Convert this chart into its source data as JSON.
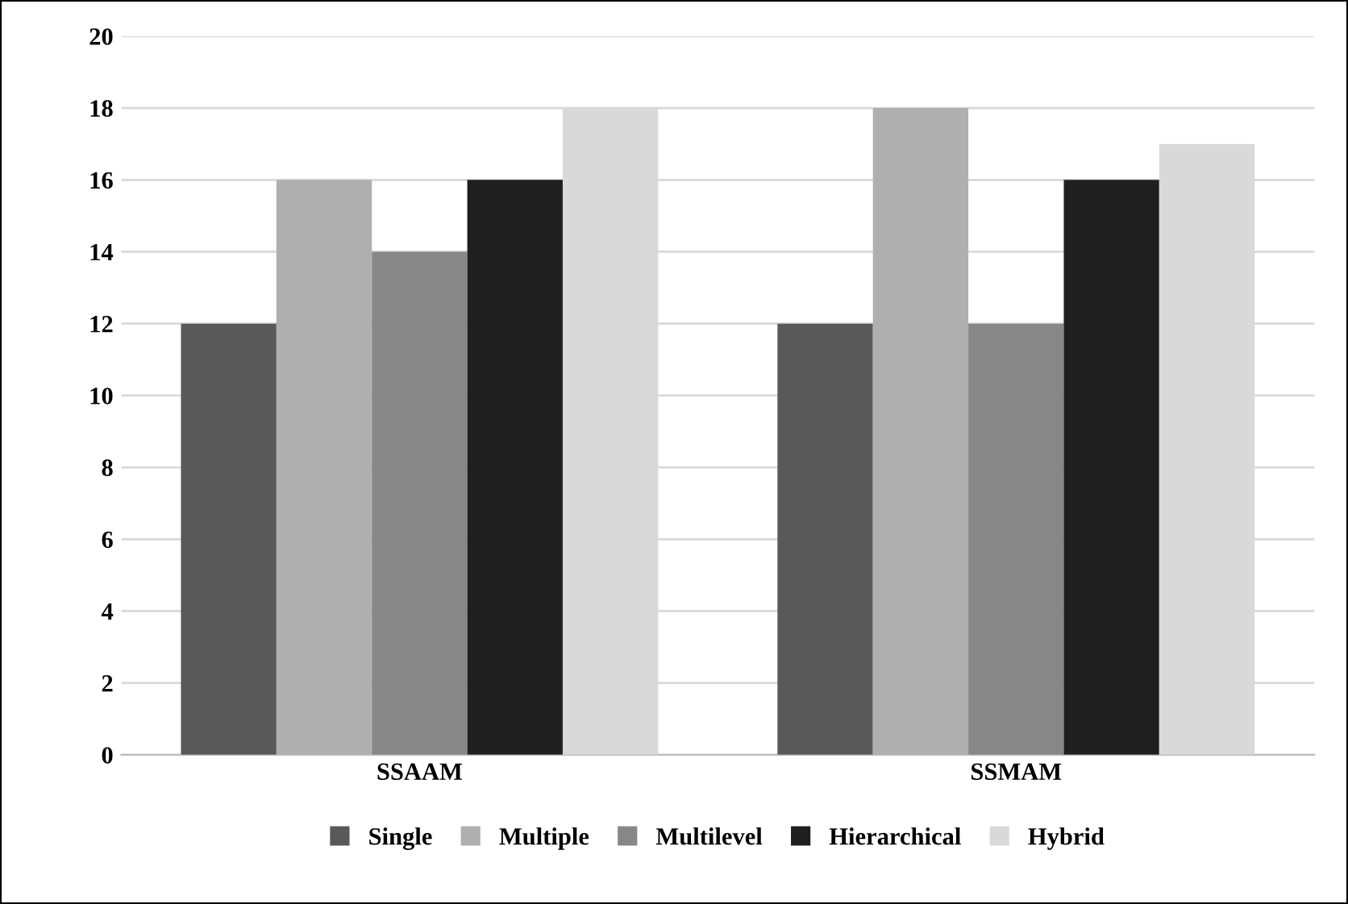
{
  "chart_data": {
    "type": "bar",
    "categories": [
      "SSAAM",
      "SSMAM"
    ],
    "series": [
      {
        "name": "Single",
        "color": "#595959",
        "values": [
          12,
          12
        ]
      },
      {
        "name": "Multiple",
        "color": "#afafaf",
        "values": [
          16,
          18
        ]
      },
      {
        "name": "Multilevel",
        "color": "#878787",
        "values": [
          14,
          12
        ]
      },
      {
        "name": "Hierarchical",
        "color": "#1f1f1f",
        "values": [
          16,
          16
        ]
      },
      {
        "name": "Hybrid",
        "color": "#d9d9d9",
        "values": [
          18,
          17
        ]
      }
    ],
    "ylim": [
      0,
      20
    ],
    "yticks": [
      0,
      2,
      4,
      6,
      8,
      10,
      12,
      14,
      16,
      18,
      20
    ],
    "grid": "y",
    "legend": "bottom"
  }
}
